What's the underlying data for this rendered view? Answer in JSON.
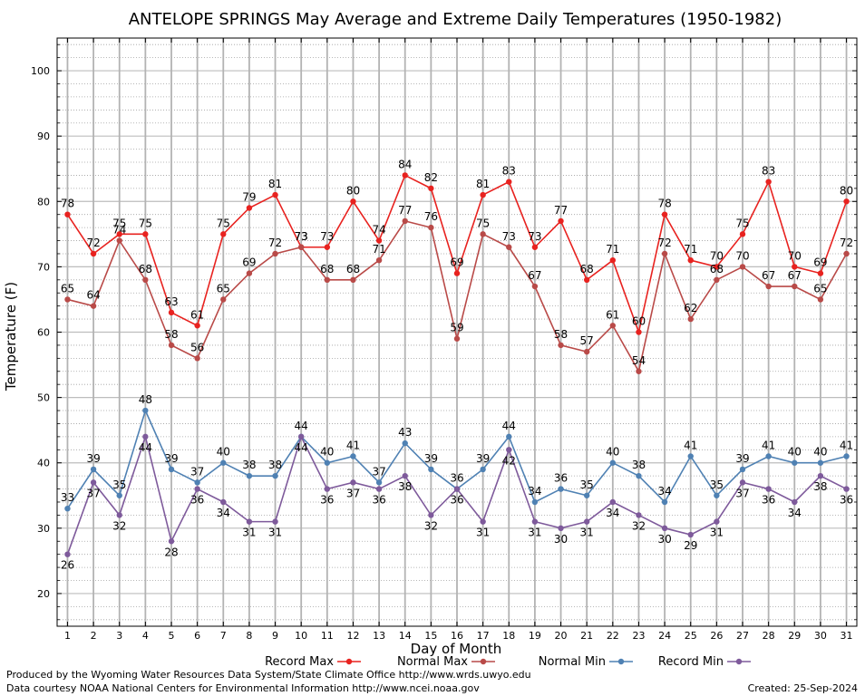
{
  "chart_data": {
    "type": "line",
    "title": "ANTELOPE SPRINGS May Average and Extreme Daily Temperatures (1950-1982)",
    "xlabel": "Day of Month",
    "ylabel": "Temperature (F)",
    "x": [
      1,
      2,
      3,
      4,
      5,
      6,
      7,
      8,
      9,
      10,
      11,
      12,
      13,
      14,
      15,
      16,
      17,
      18,
      19,
      20,
      21,
      22,
      23,
      24,
      25,
      26,
      27,
      28,
      29,
      30,
      31
    ],
    "xlim": [
      0.6,
      31.4
    ],
    "ylim": [
      15,
      105
    ],
    "yticks": [
      20,
      30,
      40,
      50,
      60,
      70,
      80,
      90,
      100
    ],
    "grid": true,
    "legend_position": "bottom",
    "series": [
      {
        "name": "Record Max",
        "color": "#e8221f",
        "values": [
          78,
          72,
          75,
          75,
          63,
          61,
          75,
          79,
          81,
          73,
          73,
          80,
          74,
          84,
          82,
          69,
          81,
          83,
          73,
          77,
          68,
          71,
          60,
          78,
          71,
          70,
          75,
          83,
          70,
          69,
          80
        ]
      },
      {
        "name": "Normal Max",
        "color": "#b94a48",
        "values": [
          65,
          64,
          74,
          68,
          58,
          56,
          65,
          69,
          72,
          73,
          68,
          68,
          71,
          77,
          76,
          59,
          75,
          73,
          67,
          58,
          57,
          61,
          54,
          72,
          62,
          68,
          70,
          67,
          67,
          65,
          72
        ]
      },
      {
        "name": "Normal Min",
        "color": "#4f81b3",
        "values": [
          33,
          39,
          35,
          48,
          39,
          37,
          40,
          38,
          38,
          44,
          40,
          41,
          37,
          43,
          39,
          36,
          39,
          44,
          34,
          36,
          35,
          40,
          38,
          34,
          41,
          35,
          39,
          41,
          40,
          40,
          41
        ]
      },
      {
        "name": "Record Min",
        "color": "#7e5a9b",
        "values": [
          26,
          37,
          32,
          44,
          28,
          36,
          34,
          31,
          31,
          44,
          36,
          37,
          36,
          38,
          32,
          36,
          31,
          42,
          31,
          30,
          31,
          34,
          32,
          30,
          29,
          31,
          37,
          36,
          34,
          38,
          36
        ]
      }
    ]
  },
  "footer": {
    "produced_by": "Produced by the Wyoming Water Resources Data System/State Climate Office http://www.wrds.uwyo.edu",
    "data_courtesy": "Data courtesy NOAA National Centers for Environmental Information http://www.ncei.noaa.gov",
    "created": "Created:  25-Sep-2024"
  }
}
